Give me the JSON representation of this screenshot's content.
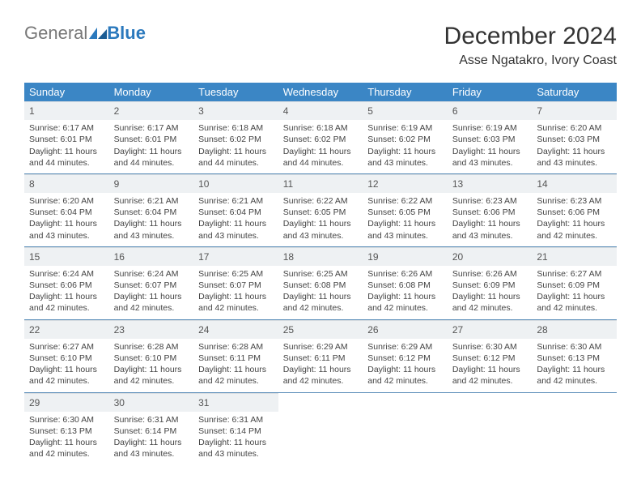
{
  "logo": {
    "general": "General",
    "blue": "Blue"
  },
  "title": "December 2024",
  "location": "Asse Ngatakro, Ivory Coast",
  "colors": {
    "header_bg": "#3b86c5",
    "header_text": "#ffffff",
    "daynum_bg": "#eef1f3",
    "row_border": "#5a8db8",
    "logo_blue": "#2b79bd"
  },
  "weekdays": [
    "Sunday",
    "Monday",
    "Tuesday",
    "Wednesday",
    "Thursday",
    "Friday",
    "Saturday"
  ],
  "days": [
    {
      "n": 1,
      "sr": "6:17 AM",
      "ss": "6:01 PM",
      "dl": "11 hours and 44 minutes."
    },
    {
      "n": 2,
      "sr": "6:17 AM",
      "ss": "6:01 PM",
      "dl": "11 hours and 44 minutes."
    },
    {
      "n": 3,
      "sr": "6:18 AM",
      "ss": "6:02 PM",
      "dl": "11 hours and 44 minutes."
    },
    {
      "n": 4,
      "sr": "6:18 AM",
      "ss": "6:02 PM",
      "dl": "11 hours and 44 minutes."
    },
    {
      "n": 5,
      "sr": "6:19 AM",
      "ss": "6:02 PM",
      "dl": "11 hours and 43 minutes."
    },
    {
      "n": 6,
      "sr": "6:19 AM",
      "ss": "6:03 PM",
      "dl": "11 hours and 43 minutes."
    },
    {
      "n": 7,
      "sr": "6:20 AM",
      "ss": "6:03 PM",
      "dl": "11 hours and 43 minutes."
    },
    {
      "n": 8,
      "sr": "6:20 AM",
      "ss": "6:04 PM",
      "dl": "11 hours and 43 minutes."
    },
    {
      "n": 9,
      "sr": "6:21 AM",
      "ss": "6:04 PM",
      "dl": "11 hours and 43 minutes."
    },
    {
      "n": 10,
      "sr": "6:21 AM",
      "ss": "6:04 PM",
      "dl": "11 hours and 43 minutes."
    },
    {
      "n": 11,
      "sr": "6:22 AM",
      "ss": "6:05 PM",
      "dl": "11 hours and 43 minutes."
    },
    {
      "n": 12,
      "sr": "6:22 AM",
      "ss": "6:05 PM",
      "dl": "11 hours and 43 minutes."
    },
    {
      "n": 13,
      "sr": "6:23 AM",
      "ss": "6:06 PM",
      "dl": "11 hours and 43 minutes."
    },
    {
      "n": 14,
      "sr": "6:23 AM",
      "ss": "6:06 PM",
      "dl": "11 hours and 42 minutes."
    },
    {
      "n": 15,
      "sr": "6:24 AM",
      "ss": "6:06 PM",
      "dl": "11 hours and 42 minutes."
    },
    {
      "n": 16,
      "sr": "6:24 AM",
      "ss": "6:07 PM",
      "dl": "11 hours and 42 minutes."
    },
    {
      "n": 17,
      "sr": "6:25 AM",
      "ss": "6:07 PM",
      "dl": "11 hours and 42 minutes."
    },
    {
      "n": 18,
      "sr": "6:25 AM",
      "ss": "6:08 PM",
      "dl": "11 hours and 42 minutes."
    },
    {
      "n": 19,
      "sr": "6:26 AM",
      "ss": "6:08 PM",
      "dl": "11 hours and 42 minutes."
    },
    {
      "n": 20,
      "sr": "6:26 AM",
      "ss": "6:09 PM",
      "dl": "11 hours and 42 minutes."
    },
    {
      "n": 21,
      "sr": "6:27 AM",
      "ss": "6:09 PM",
      "dl": "11 hours and 42 minutes."
    },
    {
      "n": 22,
      "sr": "6:27 AM",
      "ss": "6:10 PM",
      "dl": "11 hours and 42 minutes."
    },
    {
      "n": 23,
      "sr": "6:28 AM",
      "ss": "6:10 PM",
      "dl": "11 hours and 42 minutes."
    },
    {
      "n": 24,
      "sr": "6:28 AM",
      "ss": "6:11 PM",
      "dl": "11 hours and 42 minutes."
    },
    {
      "n": 25,
      "sr": "6:29 AM",
      "ss": "6:11 PM",
      "dl": "11 hours and 42 minutes."
    },
    {
      "n": 26,
      "sr": "6:29 AM",
      "ss": "6:12 PM",
      "dl": "11 hours and 42 minutes."
    },
    {
      "n": 27,
      "sr": "6:30 AM",
      "ss": "6:12 PM",
      "dl": "11 hours and 42 minutes."
    },
    {
      "n": 28,
      "sr": "6:30 AM",
      "ss": "6:13 PM",
      "dl": "11 hours and 42 minutes."
    },
    {
      "n": 29,
      "sr": "6:30 AM",
      "ss": "6:13 PM",
      "dl": "11 hours and 42 minutes."
    },
    {
      "n": 30,
      "sr": "6:31 AM",
      "ss": "6:14 PM",
      "dl": "11 hours and 43 minutes."
    },
    {
      "n": 31,
      "sr": "6:31 AM",
      "ss": "6:14 PM",
      "dl": "11 hours and 43 minutes."
    }
  ],
  "labels": {
    "sunrise": "Sunrise:",
    "sunset": "Sunset:",
    "daylight": "Daylight:"
  }
}
